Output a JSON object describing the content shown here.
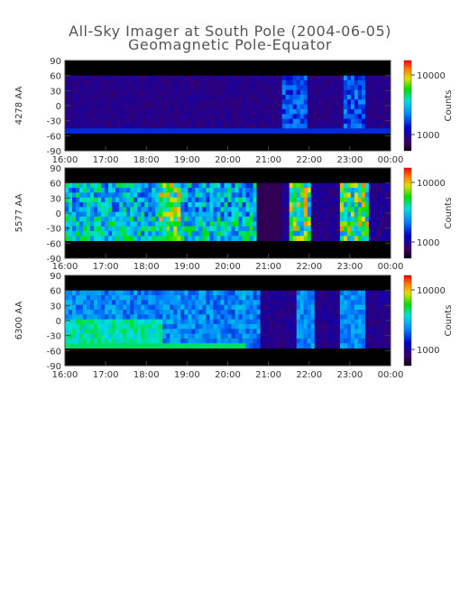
{
  "title": "All-Sky Imager at South Pole (2004-06-05)",
  "subtitle": "Geomagnetic Pole-Equator",
  "chart_data": [
    {
      "type": "heatmap",
      "ylabel": "4278 AA",
      "x_ticks": [
        "16:00",
        "17:00",
        "18:00",
        "19:00",
        "20:00",
        "21:00",
        "22:00",
        "23:00",
        "00:00"
      ],
      "y_ticks": [
        90,
        60,
        30,
        0,
        -30,
        -60,
        -90
      ],
      "ylim": [
        -90,
        90
      ],
      "colorbar": {
        "label": "Counts",
        "ticks": [
          "10000",
          "1000"
        ]
      },
      "intensity": "low"
    },
    {
      "type": "heatmap",
      "ylabel": "5577 AA",
      "x_ticks": [
        "16:00",
        "17:00",
        "18:00",
        "19:00",
        "20:00",
        "21:00",
        "22:00",
        "23:00",
        "00:00"
      ],
      "y_ticks": [
        90,
        60,
        30,
        0,
        -30,
        -60,
        -90
      ],
      "ylim": [
        -90,
        90
      ],
      "colorbar": {
        "label": "Counts",
        "ticks": [
          "10000",
          "1000"
        ]
      },
      "intensity": "high"
    },
    {
      "type": "heatmap",
      "ylabel": "6300 AA",
      "x_ticks": [
        "16:00",
        "17:00",
        "18:00",
        "19:00",
        "20:00",
        "21:00",
        "22:00",
        "23:00",
        "00:00"
      ],
      "y_ticks": [
        90,
        60,
        30,
        0,
        -30,
        -60,
        -90
      ],
      "ylim": [
        -90,
        90
      ],
      "colorbar": {
        "label": "Counts",
        "ticks": [
          "10000",
          "1000"
        ]
      },
      "intensity": "medium"
    }
  ]
}
